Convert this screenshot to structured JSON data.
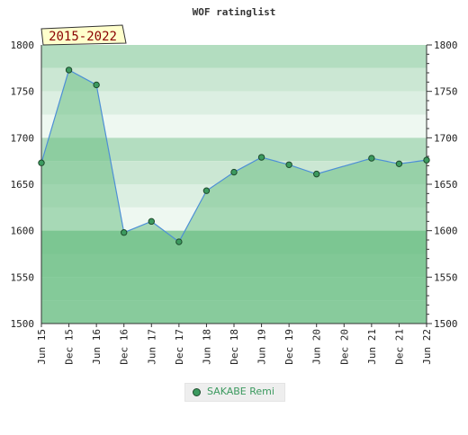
{
  "chart_data": {
    "type": "area",
    "title": "WOF ratinglist",
    "period_label": "2015-2022",
    "xlabel": "",
    "ylabel": "",
    "ylim": [
      1500,
      1800
    ],
    "yticks": [
      1500,
      1550,
      1600,
      1650,
      1700,
      1750,
      1800
    ],
    "x_tick_labels": [
      "Jun 15",
      "Dec 15",
      "Jun 16",
      "Dec 16",
      "Jun 17",
      "Dec 17",
      "Jun 18",
      "Dec 18",
      "Jun 19",
      "Dec 19",
      "Jun 20",
      "Dec 20",
      "Jun 21",
      "Dec 21",
      "Jun 22"
    ],
    "series": [
      {
        "name": "SAKABE Remi",
        "color": "#3c9a5f",
        "points": [
          {
            "x": "Jun 15",
            "y": 1673
          },
          {
            "x": "Dec 15",
            "y": 1773
          },
          {
            "x": "Jun 16",
            "y": 1757
          },
          {
            "x": "Dec 16",
            "y": 1598
          },
          {
            "x": "Jun 17",
            "y": 1610
          },
          {
            "x": "Dec 17",
            "y": 1588
          },
          {
            "x": "Jun 18",
            "y": 1643
          },
          {
            "x": "Dec 18",
            "y": 1663
          },
          {
            "x": "Jun 19",
            "y": 1679
          },
          {
            "x": "Dec 19",
            "y": 1671
          },
          {
            "x": "Jun 20",
            "y": 1661
          },
          {
            "x": "Jun 21",
            "y": 1678
          },
          {
            "x": "Dec 21",
            "y": 1672
          },
          {
            "x": "Jun 22",
            "y": 1676
          }
        ]
      }
    ],
    "legend_position": "bottom-center",
    "grid": false,
    "band_colors": {
      "1775-1800": "#b3ddc0",
      "1750-1775": "#cbe7d3",
      "1725-1750": "#dcefe2",
      "1700-1725": "#eef8f1",
      "1675-1700": "#b3ddc0",
      "1650-1675": "#cbe7d3",
      "1625-1650": "#dcefe2",
      "1600-1625": "#eef8f1",
      "1575-1600": "#8fcfa2",
      "1550-1575": "#99d3aa",
      "1525-1550": "#a1d7b2",
      "1500-1525": "#a8dab8"
    },
    "area_fill": "#6dbf85",
    "line_color": "#4d8fd6",
    "marker_fill": "#3c9a5f",
    "marker_stroke": "#1d4a2c"
  }
}
